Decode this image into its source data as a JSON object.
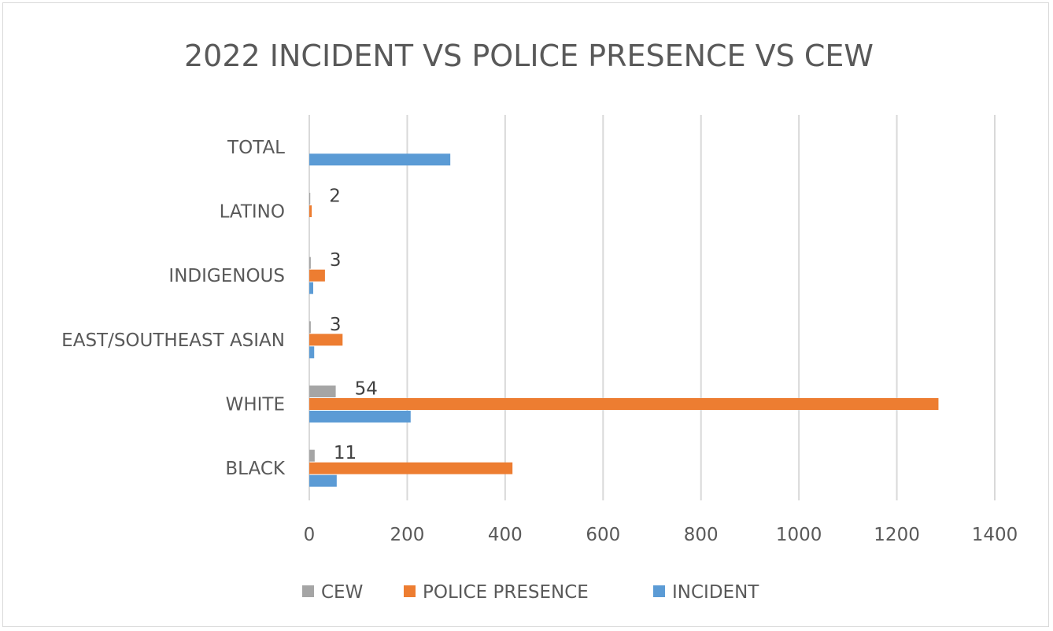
{
  "chart_data": {
    "type": "bar",
    "orientation": "horizontal",
    "title": "2022 INCIDENT VS POLICE PRESENCE VS CEW",
    "categories": [
      "BLACK",
      "WHITE",
      "EAST/SOUTHEAST ASIAN",
      "INDIGENOUS",
      "LATINO",
      "TOTAL"
    ],
    "series": [
      {
        "name": "CEW",
        "color": "#a5a5a5",
        "values": [
          11,
          54,
          3,
          3,
          2,
          0
        ],
        "data_labels": [
          "11",
          "54",
          "3",
          "3",
          "2",
          ""
        ]
      },
      {
        "name": "POLICE PRESENCE",
        "color": "#ed7d31",
        "values": [
          415,
          1285,
          68,
          32,
          5,
          0
        ]
      },
      {
        "name": "INCIDENT",
        "color": "#5b9bd5",
        "values": [
          56,
          207,
          10,
          8,
          0,
          288
        ]
      }
    ],
    "xlim": [
      0,
      1400
    ],
    "xticks": [
      "0",
      "200",
      "400",
      "600",
      "800",
      "1000",
      "1200",
      "1400"
    ],
    "grid": true,
    "legend_position": "bottom"
  }
}
